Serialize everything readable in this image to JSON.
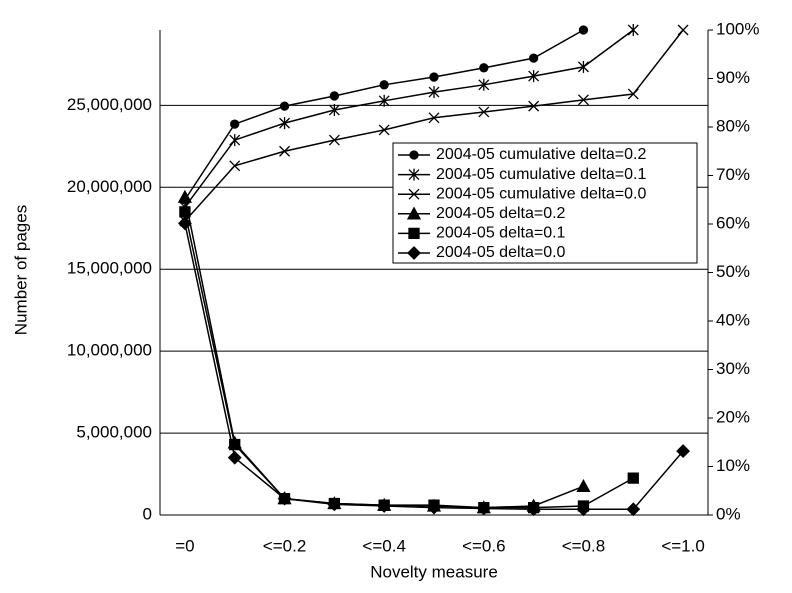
{
  "chart_data": {
    "type": "line",
    "x_label": "Novelty measure",
    "y_label": "Number of pages",
    "categories": [
      "=0",
      null,
      "<=0.2",
      null,
      "<=0.4",
      null,
      "<=0.6",
      null,
      "<=0.8",
      null,
      "<=1.0"
    ],
    "ylim": [
      0,
      29600000
    ],
    "yticks": [
      0,
      {
        "value": 5000000,
        "label": "5,000,000"
      },
      {
        "value": 10000000,
        "label": "10,000,000"
      },
      {
        "value": 15000000,
        "label": "15,000,000"
      },
      {
        "value": 20000000,
        "label": "20,000,000"
      },
      {
        "value": 25000000,
        "label": "25,000,000"
      }
    ],
    "y2lim": [
      0,
      100
    ],
    "y2ticks": [
      {
        "value": 0,
        "label": "0%"
      },
      {
        "value": 10,
        "label": "10%"
      },
      {
        "value": 20,
        "label": "20%"
      },
      {
        "value": 30,
        "label": "30%"
      },
      {
        "value": 40,
        "label": "40%"
      },
      {
        "value": 50,
        "label": "50%"
      },
      {
        "value": 60,
        "label": "60%"
      },
      {
        "value": 70,
        "label": "70%"
      },
      {
        "value": 80,
        "label": "80%"
      },
      {
        "value": 90,
        "label": "90%"
      },
      {
        "value": 100,
        "label": "100%"
      }
    ],
    "grid": true,
    "legend": "right",
    "series": [
      {
        "name": "2004-05 cumulative delta=0.2",
        "color": "#000000",
        "marker": "circle",
        "axis": "y2",
        "values": [
          65,
          80.6,
          84.3,
          86.4,
          88.7,
          90.3,
          92.2,
          94.2,
          100,
          null,
          null
        ]
      },
      {
        "name": "2004-05 cumulative delta=0.1",
        "color": "#000000",
        "marker": "star",
        "axis": "y2",
        "values": [
          63.5,
          77.3,
          80.8,
          83.5,
          85.4,
          87.2,
          88.7,
          90.5,
          92.4,
          100,
          null
        ]
      },
      {
        "name": "2004-05 cumulative delta=0.0",
        "color": "#000000",
        "marker": "x",
        "axis": "y2",
        "values": [
          60.6,
          72,
          75,
          77.3,
          79.4,
          81.9,
          83.1,
          84.3,
          85.6,
          86.8,
          100
        ]
      },
      {
        "name": "2004-05 delta=0.2",
        "color": "#000000",
        "marker": "triangle",
        "values": [
          19400000,
          4400000,
          1000000,
          700000,
          600000,
          550000,
          450000,
          550000,
          1750000,
          null,
          null
        ]
      },
      {
        "name": "2004-05 delta=0.1",
        "color": "#000000",
        "marker": "square",
        "values": [
          18500000,
          4300000,
          1000000,
          700000,
          600000,
          600000,
          450000,
          450000,
          550000,
          2250000,
          null
        ]
      },
      {
        "name": "2004-05 delta=0.0",
        "color": "#000000",
        "marker": "diamond",
        "values": [
          17800000,
          3500000,
          1000000,
          650000,
          550000,
          450000,
          400000,
          350000,
          350000,
          350000,
          3900000
        ]
      }
    ]
  }
}
